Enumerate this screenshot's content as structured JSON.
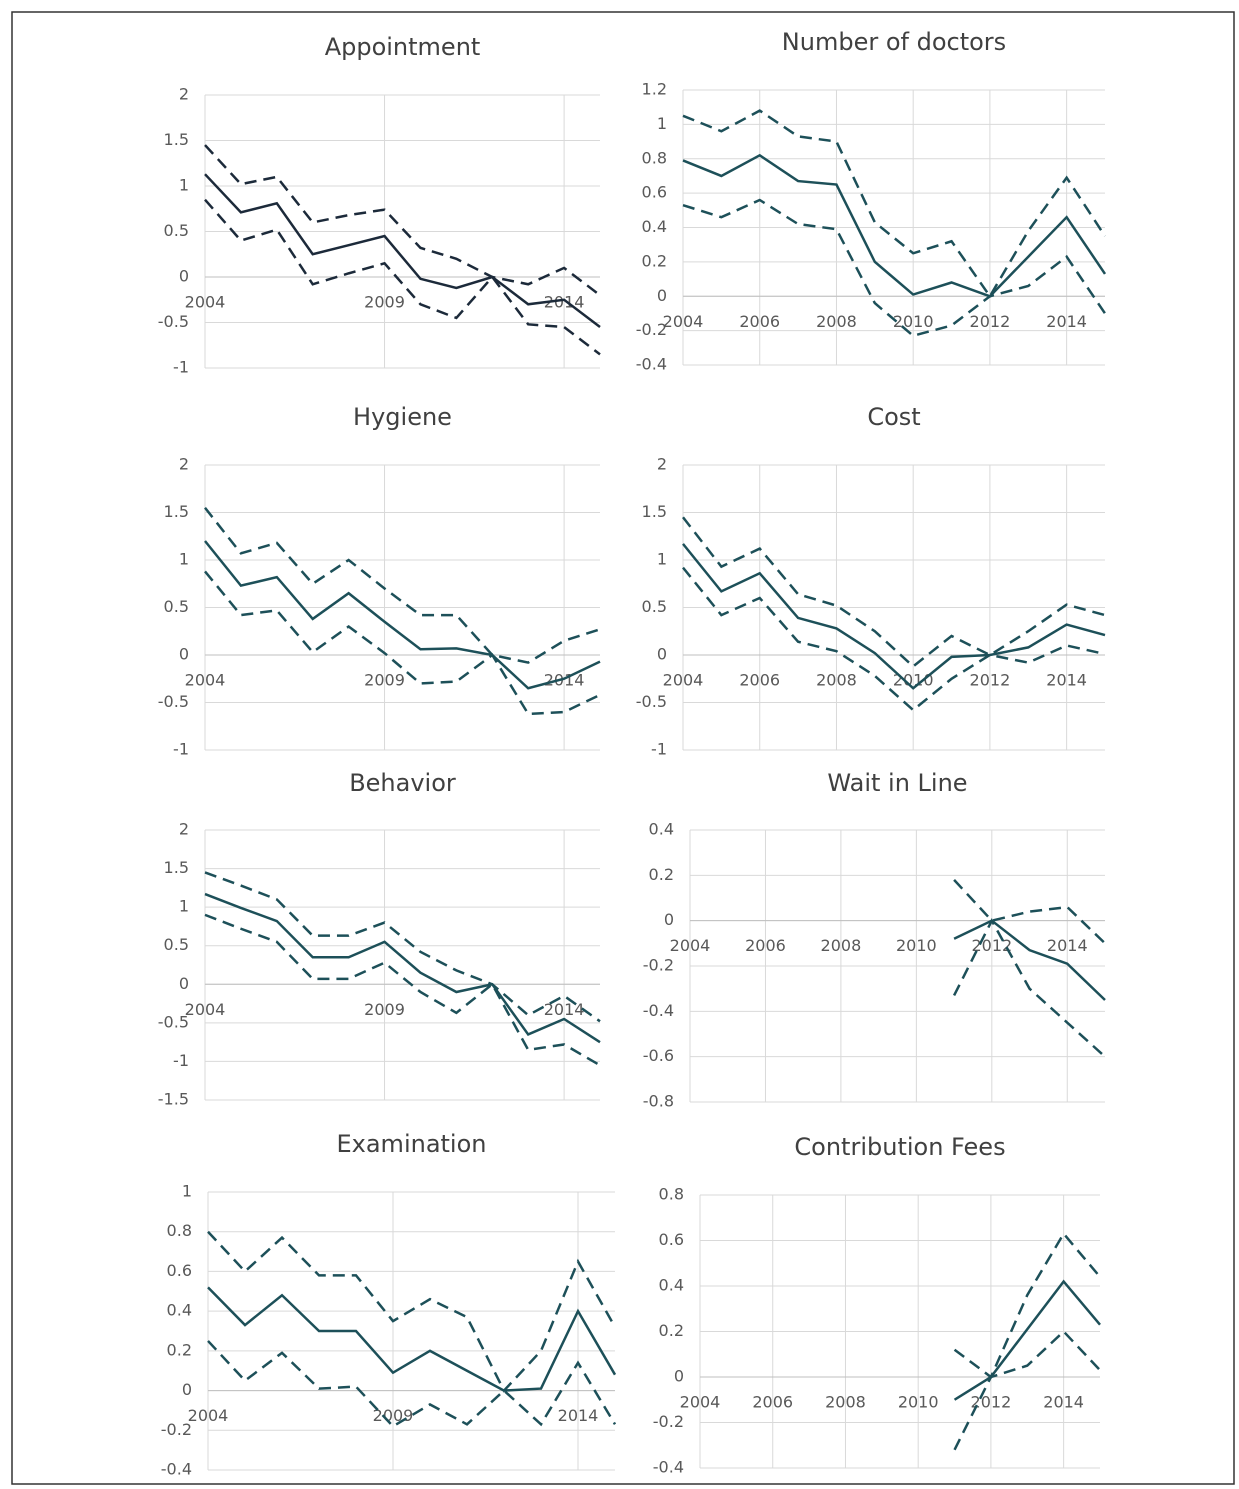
{
  "chart_data": [
    {
      "type": "line",
      "title": "Appointment",
      "x": [
        2004,
        2005,
        2006,
        2007,
        2008,
        2009,
        2010,
        2011,
        2012,
        2013,
        2014,
        2015
      ],
      "xlim": [
        2004,
        2015
      ],
      "xticks": [
        2004,
        2009,
        2014
      ],
      "ylim": [
        -1,
        2
      ],
      "yticks": [
        -1,
        -0.5,
        0,
        0.5,
        1,
        1.5,
        2
      ],
      "grid": true,
      "series": [
        {
          "color": "#1c2a3a",
          "line_style": "solid",
          "values": [
            1.13,
            0.71,
            0.81,
            0.25,
            0.35,
            0.45,
            -0.02,
            -0.12,
            0,
            -0.3,
            -0.25,
            -0.55
          ]
        },
        {
          "color": "#1c2a3a",
          "line_style": "dashed",
          "values": [
            1.45,
            1.02,
            1.1,
            0.6,
            0.68,
            0.74,
            0.32,
            0.2,
            0,
            -0.08,
            0.1,
            -0.2
          ]
        },
        {
          "color": "#1c2a3a",
          "line_style": "dashed",
          "values": [
            0.85,
            0.4,
            0.52,
            -0.08,
            0.04,
            0.15,
            -0.3,
            -0.45,
            0,
            -0.52,
            -0.55,
            -0.85
          ]
        }
      ]
    },
    {
      "type": "line",
      "title": "Number of doctors",
      "x": [
        2004,
        2005,
        2006,
        2007,
        2008,
        2009,
        2010,
        2011,
        2012,
        2013,
        2014,
        2015
      ],
      "xlim": [
        2004,
        2015
      ],
      "xticks": [
        2004,
        2006,
        2008,
        2010,
        2012,
        2014
      ],
      "ylim": [
        -0.4,
        1.2
      ],
      "yticks": [
        -0.4,
        -0.2,
        0,
        0.2,
        0.4,
        0.6,
        0.8,
        1,
        1.2
      ],
      "grid": true,
      "series": [
        {
          "color": "#1d5059",
          "line_style": "solid",
          "values": [
            0.79,
            0.7,
            0.82,
            0.67,
            0.65,
            0.2,
            0.01,
            0.08,
            0,
            0.23,
            0.46,
            0.13
          ]
        },
        {
          "color": "#1d5059",
          "line_style": "dashed",
          "values": [
            1.05,
            0.96,
            1.08,
            0.93,
            0.9,
            0.43,
            0.25,
            0.32,
            0,
            0.38,
            0.69,
            0.35
          ]
        },
        {
          "color": "#1d5059",
          "line_style": "dashed",
          "values": [
            0.53,
            0.46,
            0.56,
            0.42,
            0.39,
            -0.04,
            -0.23,
            -0.17,
            0,
            0.06,
            0.23,
            -0.1
          ]
        }
      ]
    },
    {
      "type": "line",
      "title": "Hygiene",
      "x": [
        2004,
        2005,
        2006,
        2007,
        2008,
        2009,
        2010,
        2011,
        2012,
        2013,
        2014,
        2015
      ],
      "xlim": [
        2004,
        2015
      ],
      "xticks": [
        2004,
        2009,
        2014
      ],
      "ylim": [
        -1,
        2
      ],
      "yticks": [
        -1,
        -0.5,
        0,
        0.5,
        1,
        1.5,
        2
      ],
      "grid": true,
      "series": [
        {
          "color": "#1d5059",
          "line_style": "solid",
          "values": [
            1.2,
            0.73,
            0.82,
            0.38,
            0.65,
            0.35,
            0.06,
            0.07,
            0,
            -0.35,
            -0.25,
            -0.07
          ]
        },
        {
          "color": "#1d5059",
          "line_style": "dashed",
          "values": [
            1.55,
            1.07,
            1.18,
            0.75,
            1.0,
            0.7,
            0.42,
            0.42,
            0,
            -0.08,
            0.15,
            0.27
          ]
        },
        {
          "color": "#1d5059",
          "line_style": "dashed",
          "values": [
            0.88,
            0.42,
            0.47,
            0.03,
            0.3,
            0.02,
            -0.3,
            -0.28,
            0,
            -0.62,
            -0.6,
            -0.42
          ]
        }
      ]
    },
    {
      "type": "line",
      "title": "Cost",
      "x": [
        2004,
        2005,
        2006,
        2007,
        2008,
        2009,
        2010,
        2011,
        2012,
        2013,
        2014,
        2015
      ],
      "xlim": [
        2004,
        2015
      ],
      "xticks": [
        2004,
        2006,
        2008,
        2010,
        2012,
        2014
      ],
      "ylim": [
        -1,
        2
      ],
      "yticks": [
        -1,
        -0.5,
        0,
        0.5,
        1,
        1.5,
        2
      ],
      "grid": true,
      "series": [
        {
          "color": "#1d5059",
          "line_style": "solid",
          "values": [
            1.17,
            0.67,
            0.86,
            0.39,
            0.28,
            0.02,
            -0.35,
            -0.02,
            0,
            0.08,
            0.32,
            0.21
          ]
        },
        {
          "color": "#1d5059",
          "line_style": "dashed",
          "values": [
            1.45,
            0.93,
            1.12,
            0.64,
            0.52,
            0.25,
            -0.12,
            0.2,
            0,
            0.25,
            0.53,
            0.42
          ]
        },
        {
          "color": "#1d5059",
          "line_style": "dashed",
          "values": [
            0.92,
            0.42,
            0.6,
            0.14,
            0.04,
            -0.22,
            -0.58,
            -0.25,
            0,
            -0.08,
            0.1,
            0.01
          ]
        }
      ]
    },
    {
      "type": "line",
      "title": "Behavior",
      "x": [
        2004,
        2005,
        2006,
        2007,
        2008,
        2009,
        2010,
        2011,
        2012,
        2013,
        2014,
        2015
      ],
      "xlim": [
        2004,
        2015
      ],
      "xticks": [
        2004,
        2009,
        2014
      ],
      "ylim": [
        -1.5,
        2
      ],
      "yticks": [
        -1.5,
        -1,
        -0.5,
        0,
        0.5,
        1,
        1.5,
        2
      ],
      "grid": true,
      "series": [
        {
          "color": "#1d5059",
          "line_style": "solid",
          "values": [
            1.17,
            0.99,
            0.82,
            0.35,
            0.35,
            0.55,
            0.15,
            -0.1,
            0,
            -0.65,
            -0.45,
            -0.75
          ]
        },
        {
          "color": "#1d5059",
          "line_style": "dashed",
          "values": [
            1.45,
            1.28,
            1.1,
            0.63,
            0.63,
            0.8,
            0.42,
            0.18,
            0,
            -0.4,
            -0.15,
            -0.48
          ]
        },
        {
          "color": "#1d5059",
          "line_style": "dashed",
          "values": [
            0.9,
            0.72,
            0.55,
            0.07,
            0.07,
            0.28,
            -0.1,
            -0.37,
            0,
            -0.85,
            -0.78,
            -1.05
          ]
        }
      ]
    },
    {
      "type": "line",
      "title": "Wait in Line",
      "x": [
        2004,
        2005,
        2006,
        2007,
        2008,
        2009,
        2010,
        2011,
        2012,
        2013,
        2014,
        2015
      ],
      "xlim": [
        2004,
        2015
      ],
      "xticks": [
        2004,
        2006,
        2008,
        2010,
        2012,
        2014
      ],
      "ylim": [
        -0.8,
        0.4
      ],
      "yticks": [
        -0.8,
        -0.6,
        -0.4,
        -0.2,
        0,
        0.2,
        0.4
      ],
      "grid": true,
      "series": [
        {
          "color": "#1d5059",
          "line_style": "solid",
          "values": [
            null,
            null,
            null,
            null,
            null,
            null,
            null,
            -0.08,
            0,
            -0.13,
            -0.19,
            -0.35
          ]
        },
        {
          "color": "#1d5059",
          "line_style": "dashed",
          "values": [
            null,
            null,
            null,
            null,
            null,
            null,
            null,
            0.18,
            0,
            0.04,
            0.06,
            -0.1
          ]
        },
        {
          "color": "#1d5059",
          "line_style": "dashed",
          "values": [
            null,
            null,
            null,
            null,
            null,
            null,
            null,
            -0.33,
            0,
            -0.3,
            -0.45,
            -0.6
          ]
        }
      ]
    },
    {
      "type": "line",
      "title": "Examination",
      "x": [
        2004,
        2005,
        2006,
        2007,
        2008,
        2009,
        2010,
        2011,
        2012,
        2013,
        2014,
        2015
      ],
      "xlim": [
        2004,
        2015
      ],
      "xticks": [
        2004,
        2009,
        2014
      ],
      "ylim": [
        -0.4,
        1
      ],
      "yticks": [
        -0.4,
        -0.2,
        0,
        0.2,
        0.4,
        0.6,
        0.8,
        1
      ],
      "grid": true,
      "series": [
        {
          "color": "#1d5059",
          "line_style": "solid",
          "values": [
            0.52,
            0.33,
            0.48,
            0.3,
            0.3,
            0.09,
            0.2,
            0.1,
            0,
            0.01,
            0.4,
            0.08
          ]
        },
        {
          "color": "#1d5059",
          "line_style": "dashed",
          "values": [
            0.8,
            0.6,
            0.77,
            0.58,
            0.58,
            0.35,
            0.46,
            0.37,
            0,
            0.2,
            0.65,
            0.32
          ]
        },
        {
          "color": "#1d5059",
          "line_style": "dashed",
          "values": [
            0.25,
            0.05,
            0.19,
            0.01,
            0.02,
            -0.18,
            -0.07,
            -0.17,
            0,
            -0.17,
            0.14,
            -0.17
          ]
        }
      ]
    },
    {
      "type": "line",
      "title": "Contribution Fees",
      "x": [
        2004,
        2005,
        2006,
        2007,
        2008,
        2009,
        2010,
        2011,
        2012,
        2013,
        2014,
        2015
      ],
      "xlim": [
        2004,
        2015
      ],
      "xticks": [
        2004,
        2006,
        2008,
        2010,
        2012,
        2014
      ],
      "ylim": [
        -0.4,
        0.8
      ],
      "yticks": [
        -0.4,
        -0.2,
        0,
        0.2,
        0.4,
        0.6,
        0.8
      ],
      "grid": true,
      "series": [
        {
          "color": "#1d5059",
          "line_style": "solid",
          "values": [
            null,
            null,
            null,
            null,
            null,
            null,
            null,
            -0.1,
            0,
            0.21,
            0.42,
            0.23
          ]
        },
        {
          "color": "#1d5059",
          "line_style": "dashed",
          "values": [
            null,
            null,
            null,
            null,
            null,
            null,
            null,
            0.12,
            0,
            0.36,
            0.63,
            0.44
          ]
        },
        {
          "color": "#1d5059",
          "line_style": "dashed",
          "values": [
            null,
            null,
            null,
            null,
            null,
            null,
            null,
            -0.32,
            0,
            0.05,
            0.2,
            0.03
          ]
        }
      ]
    }
  ]
}
